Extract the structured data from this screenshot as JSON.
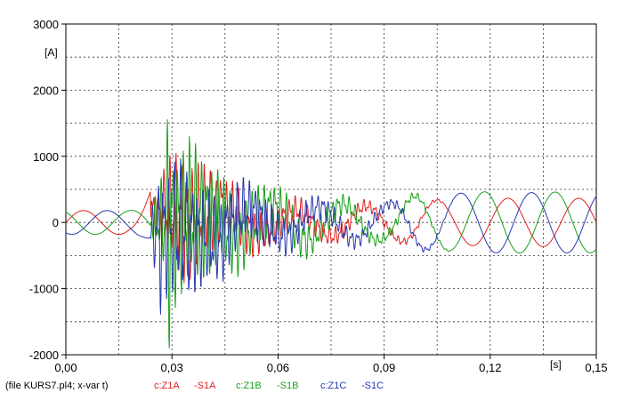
{
  "chart_data": {
    "type": "line",
    "ylabel": "[A]",
    "xunit": "[s]",
    "xlim": [
      0,
      0.15
    ],
    "ylim": [
      -2000,
      3000
    ],
    "xticks": [
      0.0,
      0.03,
      0.06,
      0.09,
      0.12,
      0.15
    ],
    "xtick_labels": [
      "0,00",
      "0,03",
      "0,06",
      "0,09",
      "0,12",
      "0,15"
    ],
    "yticks": [
      -2000,
      -1000,
      0,
      1000,
      2000,
      3000
    ],
    "ytick_labels": [
      "-2000",
      "-1000",
      "0",
      "1000",
      "2000",
      "3000"
    ],
    "grid": true,
    "legend": {
      "placement": "bottom-left",
      "file_note": "(file KURS7.pl4; x-var t)",
      "entries": [
        "c:Z1A",
        "-S1A",
        "c:Z1B",
        "-S1B",
        "c:Z1C",
        "-S1C"
      ]
    },
    "series": [
      {
        "color": "#e02020",
        "phase_deg": 0,
        "x": [
          0.0,
          0.006,
          0.012,
          0.018,
          0.022,
          0.024,
          0.026,
          0.028,
          0.03,
          0.032,
          0.034,
          0.036,
          0.04,
          0.045,
          0.05,
          0.06,
          0.07,
          0.08,
          0.09,
          0.1,
          0.11,
          0.12,
          0.13,
          0.14,
          0.15
        ],
        "envelope": [
          180,
          180,
          180,
          180,
          330,
          500,
          320,
          800,
          900,
          1050,
          1100,
          1000,
          850,
          700,
          620,
          450,
          380,
          380,
          330,
          380,
          340,
          360,
          370,
          360,
          370
        ]
      },
      {
        "color": "#18a018",
        "phase_deg": 120,
        "x": [
          0.0,
          0.006,
          0.012,
          0.018,
          0.022,
          0.024,
          0.026,
          0.028,
          0.029,
          0.03,
          0.032,
          0.035,
          0.04,
          0.045,
          0.05,
          0.06,
          0.07,
          0.08,
          0.09,
          0.1,
          0.11,
          0.12,
          0.13,
          0.14,
          0.15
        ],
        "envelope": [
          180,
          180,
          180,
          180,
          200,
          250,
          500,
          900,
          2250,
          1400,
          1200,
          1350,
          1100,
          900,
          800,
          650,
          550,
          440,
          360,
          480,
          430,
          470,
          460,
          460,
          460
        ]
      },
      {
        "color": "#2838b0",
        "phase_deg": 240,
        "x": [
          0.0,
          0.006,
          0.012,
          0.018,
          0.022,
          0.024,
          0.026,
          0.027,
          0.028,
          0.03,
          0.032,
          0.035,
          0.04,
          0.045,
          0.05,
          0.06,
          0.07,
          0.08,
          0.09,
          0.1,
          0.11,
          0.12,
          0.13,
          0.14,
          0.15
        ],
        "envelope": [
          180,
          180,
          180,
          180,
          220,
          300,
          900,
          1350,
          1000,
          1100,
          1150,
          1050,
          900,
          800,
          720,
          560,
          460,
          420,
          360,
          460,
          440,
          460,
          450,
          460,
          460
        ]
      }
    ]
  }
}
